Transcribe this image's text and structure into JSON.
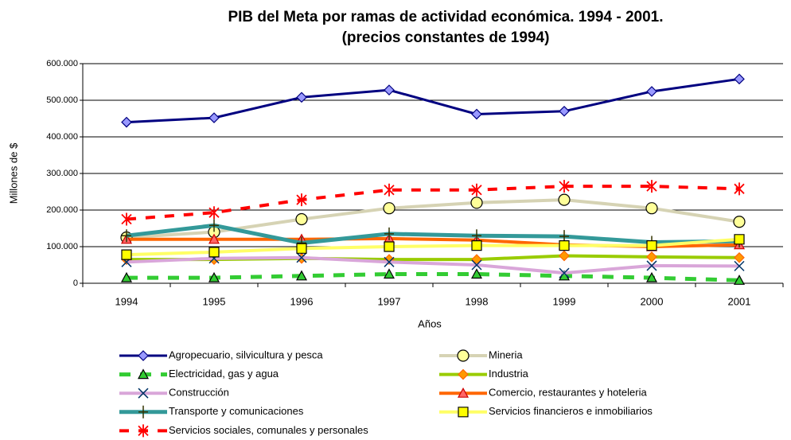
{
  "chart_data": {
    "type": "line",
    "title": "PIB del Meta por ramas de actividad económica.  1994 - 2001.",
    "subtitle": "(precios constantes de 1994)",
    "x_label": "Años",
    "y_label": "Millones de $",
    "categories": [
      "1994",
      "1995",
      "1996",
      "1997",
      "1998",
      "1999",
      "2000",
      "2001"
    ],
    "ylim": [
      0,
      600000
    ],
    "yticks": [
      0,
      {
        "value": 100000,
        "label": "100.000"
      },
      {
        "value": 200000,
        "label": "200.000"
      },
      {
        "value": 300000,
        "label": "300.000"
      },
      {
        "value": 400000,
        "label": "400.000"
      },
      {
        "value": 500000,
        "label": "500.000"
      },
      {
        "value": 600000,
        "label": "600.000"
      }
    ],
    "series": [
      {
        "name": "Agropecuario, silvicultura y pesca",
        "color": "#000080",
        "values": [
          440000,
          452000,
          508000,
          528000,
          462000,
          470000,
          524000,
          558000
        ]
      },
      {
        "name": "Mineria",
        "color": "#d6d3b4",
        "values": [
          125000,
          140000,
          175000,
          205000,
          220000,
          228000,
          205000,
          168000
        ]
      },
      {
        "name": "Electricidad, gas y agua",
        "color": "#33cc33",
        "values": [
          15000,
          15000,
          20000,
          25000,
          25000,
          20000,
          15000,
          8000
        ]
      },
      {
        "name": "Industria",
        "color": "#99cc00",
        "values": [
          65000,
          65000,
          68000,
          65000,
          65000,
          75000,
          72000,
          70000
        ]
      },
      {
        "name": "Construcción",
        "color": "#d9a6d9",
        "values": [
          58000,
          68000,
          70000,
          58000,
          50000,
          28000,
          48000,
          47000
        ]
      },
      {
        "name": "Comercio, restaurantes y hoteleria",
        "color": "#ff6600",
        "values": [
          120000,
          120000,
          120000,
          122000,
          118000,
          105000,
          100000,
          105000
        ]
      },
      {
        "name": "Transporte y comunicaciones",
        "color": "#339999",
        "values": [
          130000,
          158000,
          110000,
          135000,
          130000,
          128000,
          112000,
          115000
        ]
      },
      {
        "name": "Servicios financieros  e inmobiliarios",
        "color": "#ffff66",
        "values": [
          78000,
          85000,
          95000,
          100000,
          103000,
          103000,
          103000,
          120000
        ]
      },
      {
        "name": "Servicios sociales, comunales y personales",
        "color": "#ff0000",
        "values": [
          175000,
          193000,
          228000,
          255000,
          255000,
          265000,
          265000,
          258000
        ]
      }
    ]
  }
}
